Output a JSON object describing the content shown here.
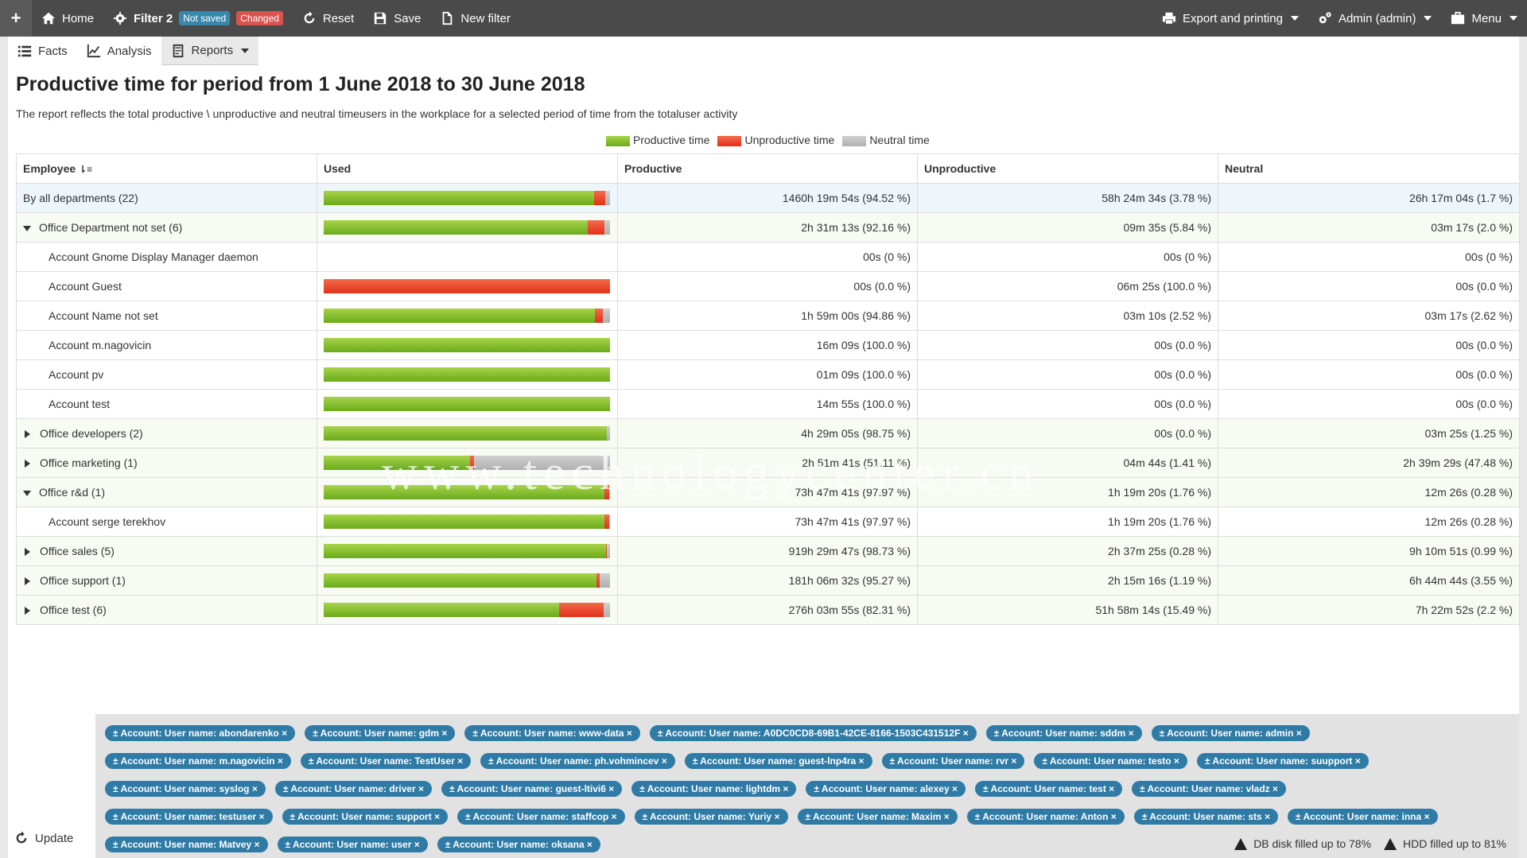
{
  "topbar": {
    "plus": "+",
    "home": "Home",
    "filter_name": "Filter 2",
    "badge_not_saved": "Not saved",
    "badge_changed": "Changed",
    "reset": "Reset",
    "save": "Save",
    "new_filter": "New filter",
    "export": "Export and printing",
    "user": "Admin (admin)",
    "menu": "Menu"
  },
  "subbar": {
    "facts": "Facts",
    "analysis": "Analysis",
    "reports": "Reports"
  },
  "report": {
    "title": "Productive time for period from 1 June 2018 to 30 June 2018",
    "description": "The report reflects the total productive \\ unproductive and neutral timeusers in the workplace for a selected period of time from the totaluser activity"
  },
  "legend": {
    "productive": "Productive time",
    "unproductive": "Unproductive time",
    "neutral": "Neutral time",
    "colors": {
      "productive": "#7cbf1e",
      "unproductive": "#e8381e",
      "neutral": "#bdbdbd"
    }
  },
  "table": {
    "headers": {
      "employee": "Employee",
      "used": "Used",
      "productive": "Productive",
      "unproductive": "Unproductive",
      "neutral": "Neutral"
    },
    "rows": [
      {
        "level": "all",
        "name": "By all departments (22)",
        "productive": "1460h 19m 54s (94.52 %)",
        "unproductive": "58h 24m 34s (3.78 %)",
        "neutral": "26h 17m 04s (1.7 %)",
        "bar": [
          94.52,
          3.78,
          1.7
        ]
      },
      {
        "level": "dept-open",
        "name": "Office Department not set (6)",
        "productive": "2h 31m 13s (92.16 %)",
        "unproductive": "09m 35s (5.84 %)",
        "neutral": "03m 17s (2.0 %)",
        "bar": [
          92.16,
          5.84,
          2.0
        ]
      },
      {
        "level": "acct",
        "name": "Account Gnome Display Manager daemon",
        "productive": "00s (0 %)",
        "unproductive": "00s (0 %)",
        "neutral": "00s (0 %)",
        "bar": [
          0,
          0,
          0
        ]
      },
      {
        "level": "acct",
        "name": "Account Guest",
        "productive": "00s (0.0 %)",
        "unproductive": "06m 25s (100.0 %)",
        "neutral": "00s (0.0 %)",
        "bar": [
          0,
          100,
          0
        ]
      },
      {
        "level": "acct",
        "name": "Account Name not set",
        "productive": "1h 59m 00s (94.86 %)",
        "unproductive": "03m 10s (2.52 %)",
        "neutral": "03m 17s (2.62 %)",
        "bar": [
          94.86,
          2.52,
          2.62
        ]
      },
      {
        "level": "acct",
        "name": "Account m.nagovicin",
        "productive": "16m 09s (100.0 %)",
        "unproductive": "00s (0.0 %)",
        "neutral": "00s (0.0 %)",
        "bar": [
          100,
          0,
          0
        ]
      },
      {
        "level": "acct",
        "name": "Account pv",
        "productive": "01m 09s (100.0 %)",
        "unproductive": "00s (0.0 %)",
        "neutral": "00s (0.0 %)",
        "bar": [
          100,
          0,
          0
        ]
      },
      {
        "level": "acct",
        "name": "Account test",
        "productive": "14m 55s (100.0 %)",
        "unproductive": "00s (0.0 %)",
        "neutral": "00s (0.0 %)",
        "bar": [
          100,
          0,
          0
        ]
      },
      {
        "level": "dept-closed",
        "name": "Office developers (2)",
        "productive": "4h 29m 05s (98.75 %)",
        "unproductive": "00s (0.0 %)",
        "neutral": "03m 25s (1.25 %)",
        "bar": [
          98.75,
          0,
          1.25
        ]
      },
      {
        "level": "dept-closed",
        "name": "Office marketing (1)",
        "productive": "2h 51m 41s (51.11 %)",
        "unproductive": "04m 44s (1.41 %)",
        "neutral": "2h 39m 29s (47.48 %)",
        "bar": [
          51.11,
          1.41,
          47.48
        ]
      },
      {
        "level": "dept-open",
        "name": "Office r&d (1)",
        "productive": "73h 47m 41s (97.97 %)",
        "unproductive": "1h 19m 20s (1.76 %)",
        "neutral": "12m 26s (0.28 %)",
        "bar": [
          97.97,
          1.76,
          0.28
        ]
      },
      {
        "level": "acct",
        "name": "Account serge terekhov",
        "productive": "73h 47m 41s (97.97 %)",
        "unproductive": "1h 19m 20s (1.76 %)",
        "neutral": "12m 26s (0.28 %)",
        "bar": [
          97.97,
          1.76,
          0.28
        ]
      },
      {
        "level": "dept-closed",
        "name": "Office sales (5)",
        "productive": "919h 29m 47s (98.73 %)",
        "unproductive": "2h 37m 25s (0.28 %)",
        "neutral": "9h 10m 51s (0.99 %)",
        "bar": [
          98.73,
          0.28,
          0.99
        ]
      },
      {
        "level": "dept-closed",
        "name": "Office support (1)",
        "productive": "181h 06m 32s (95.27 %)",
        "unproductive": "2h 15m 16s (1.19 %)",
        "neutral": "6h 44m 44s (3.55 %)",
        "bar": [
          95.27,
          1.19,
          3.55
        ]
      },
      {
        "level": "dept-closed",
        "name": "Office test (6)",
        "productive": "276h 03m 55s (82.31 %)",
        "unproductive": "51h 58m 14s (15.49 %)",
        "neutral": "7h 22m 52s (2.2 %)",
        "bar": [
          82.31,
          15.49,
          2.2
        ]
      }
    ]
  },
  "filters": [
    [
      "± Account: User name: abondarenko ×",
      "± Account: User name: gdm ×",
      "± Account: User name: www-data ×",
      "± Account: User name: A0DC0CD8-69B1-42CE-8166-1503C431512F ×",
      "± Account: User name: sddm ×",
      "± Account: User name: admin ×"
    ],
    [
      "± Account: User name: m.nagovicin ×",
      "± Account: User name: TestUser ×",
      "± Account: User name: ph.vohmincev ×",
      "± Account: User name: guest-lnp4ra ×",
      "± Account: User name: rvr ×",
      "± Account: User name: testo ×",
      "± Account: User name: suupport ×"
    ],
    [
      "± Account: User name: syslog ×",
      "± Account: User name: driver ×",
      "± Account: User name: guest-ltivi6 ×",
      "± Account: User name: lightdm ×",
      "± Account: User name: alexey ×",
      "± Account: User name: test ×",
      "± Account: User name: vladz ×"
    ],
    [
      "± Account: User name: testuser ×",
      "± Account: User name: support ×",
      "± Account: User name: staffcop ×",
      "± Account: User name: Yuriy ×",
      "± Account: User name: Maxim ×",
      "± Account: User name: Anton ×",
      "± Account: User name: sts ×",
      "± Account: User name: inna ×"
    ],
    [
      "± Account: User name: Matvey ×",
      "± Account: User name: user ×",
      "± Account: User name: oksana ×"
    ]
  ],
  "footer": {
    "update": "Update",
    "db_status": "DB disk filled up to 78%",
    "hdd_status": "HDD filled up to 81%"
  },
  "watermark": "www.technologycenter.cn"
}
